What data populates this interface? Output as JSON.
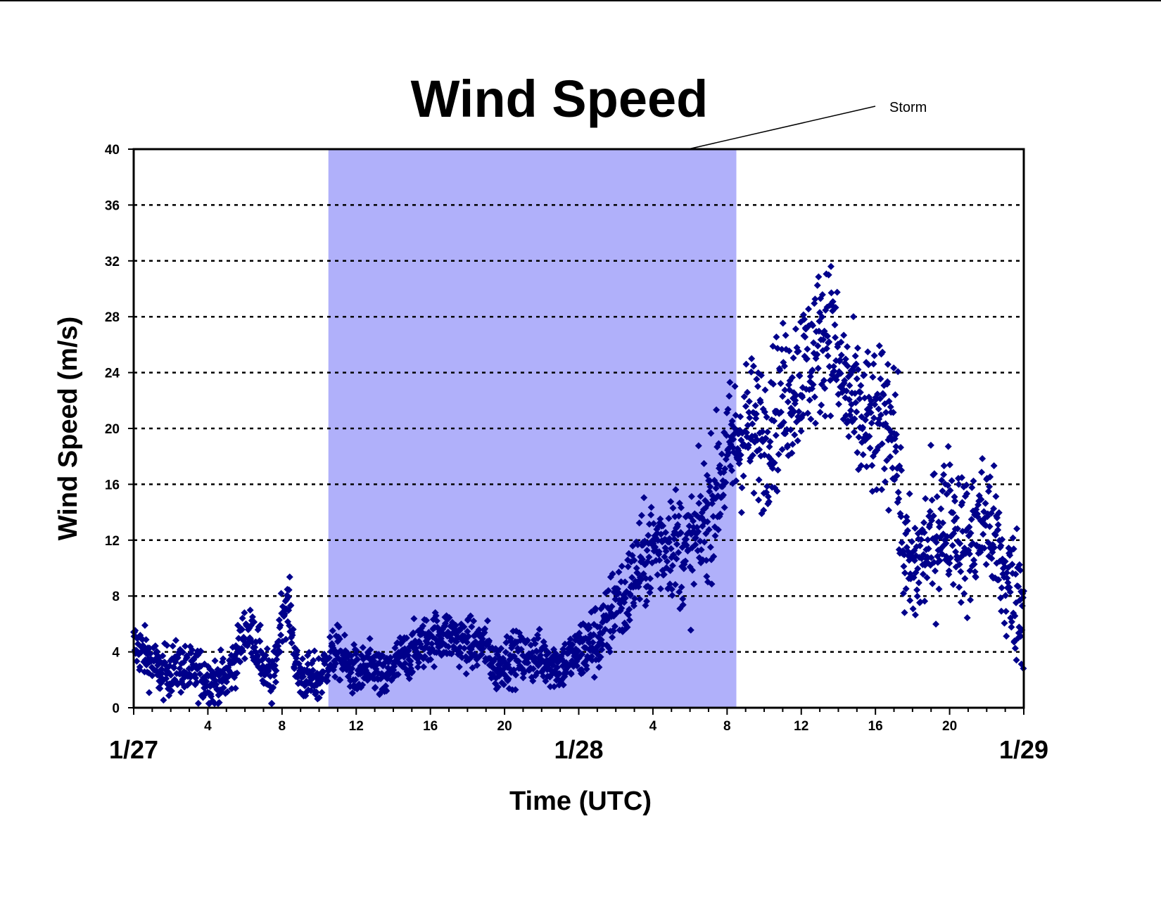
{
  "colors": {
    "marker": "#00008B",
    "storm_band": "#B0B0FA",
    "grid": "#000000",
    "background": "#FFFFFF"
  },
  "chart_data": {
    "type": "scatter",
    "title": "Wind Speed",
    "xlabel": "Time (UTC)",
    "ylabel": "Wind Speed (m/s)",
    "ylim": [
      0,
      40
    ],
    "yticks": [
      0,
      4,
      8,
      12,
      16,
      20,
      24,
      28,
      32,
      36,
      40
    ],
    "xlim_hours": [
      0,
      48
    ],
    "xticks": [
      {
        "hour": 4,
        "label": "4"
      },
      {
        "hour": 8,
        "label": "8"
      },
      {
        "hour": 12,
        "label": "12"
      },
      {
        "hour": 16,
        "label": "16"
      },
      {
        "hour": 20,
        "label": "20"
      },
      {
        "hour": 28,
        "label": "4"
      },
      {
        "hour": 32,
        "label": "8"
      },
      {
        "hour": 36,
        "label": "12"
      },
      {
        "hour": 40,
        "label": "16"
      },
      {
        "hour": 44,
        "label": "20"
      }
    ],
    "date_labels": [
      {
        "hour": 0,
        "label": "1/27"
      },
      {
        "hour": 24,
        "label": "1/28"
      },
      {
        "hour": 48,
        "label": "1/29"
      }
    ],
    "grid": "horizontal dotted",
    "annotation": {
      "text": "Storm",
      "band_start_hour": 10.5,
      "band_end_hour": 32.5
    },
    "series": [
      {
        "marker": "diamond",
        "anchors": [
          [
            0,
            4.5
          ],
          [
            0.5,
            4
          ],
          [
            1,
            3.2
          ],
          [
            1.5,
            2.4
          ],
          [
            2,
            2.8
          ],
          [
            2.5,
            2.9
          ],
          [
            3,
            2.5
          ],
          [
            3.5,
            2.6
          ],
          [
            4,
            2.0
          ],
          [
            4.5,
            1.8
          ],
          [
            5,
            2.1
          ],
          [
            5.5,
            3.5
          ],
          [
            6,
            5.5
          ],
          [
            6.5,
            5.0
          ],
          [
            7,
            3.0
          ],
          [
            7.5,
            1.5
          ],
          [
            8,
            7.0
          ],
          [
            8.4,
            7.2
          ],
          [
            8.8,
            2.5
          ],
          [
            9.5,
            2.0
          ],
          [
            10,
            2.0
          ],
          [
            10.5,
            3.5
          ],
          [
            11,
            4.0
          ],
          [
            11.5,
            3.0
          ],
          [
            12,
            2.5
          ],
          [
            13,
            2.8
          ],
          [
            13.5,
            1.8
          ],
          [
            14,
            3.0
          ],
          [
            15,
            4.0
          ],
          [
            16,
            5.0
          ],
          [
            17,
            5.2
          ],
          [
            18,
            4.5
          ],
          [
            19,
            4.5
          ],
          [
            19.5,
            2.8
          ],
          [
            20,
            3.5
          ],
          [
            21,
            3.6
          ],
          [
            22,
            3.6
          ],
          [
            23,
            3.0
          ],
          [
            24,
            4.0
          ],
          [
            25,
            5.0
          ],
          [
            25.5,
            5.5
          ],
          [
            26,
            8.0
          ],
          [
            26.5,
            7.5
          ],
          [
            27,
            9.5
          ],
          [
            28,
            11.5
          ],
          [
            29,
            12.0
          ],
          [
            30,
            11.0
          ],
          [
            31,
            14.0
          ],
          [
            32,
            18.0
          ],
          [
            33,
            20.0
          ],
          [
            34,
            19.5
          ],
          [
            35,
            22.0
          ],
          [
            36,
            24.0
          ],
          [
            37,
            26.0
          ],
          [
            37.5,
            28.0
          ],
          [
            38,
            24.0
          ],
          [
            39,
            21.0
          ],
          [
            40,
            20.0
          ],
          [
            41,
            21.0
          ],
          [
            41.5,
            11.0
          ],
          [
            42,
            9.5
          ],
          [
            43,
            12.0
          ],
          [
            44,
            14.0
          ],
          [
            45,
            11.5
          ],
          [
            46,
            14.0
          ],
          [
            47,
            9.0
          ],
          [
            48,
            7.5
          ]
        ]
      }
    ]
  }
}
